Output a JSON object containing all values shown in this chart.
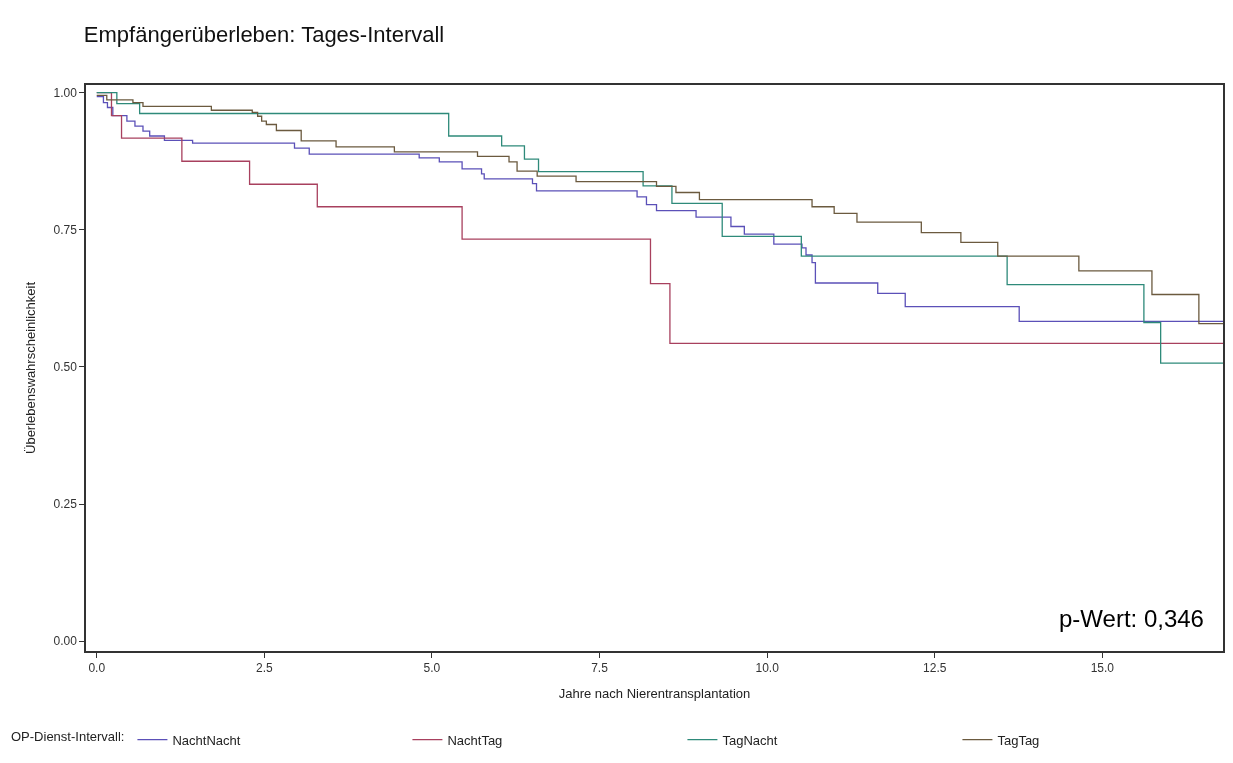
{
  "chart_data": {
    "type": "step",
    "title": "Empfängerüberleben: Tages-Intervall",
    "xlabel": "Jahre nach Nierentransplantation",
    "ylabel": "Überlebenswahrscheinlichkeit",
    "legend_title": "OP-Dienst-Intervall:",
    "legend": "bottom",
    "marker": "none",
    "line_style": "solid",
    "xlim": [
      -0.16,
      16.8
    ],
    "xticks": [
      {
        "value": 0,
        "label": "0.0"
      },
      {
        "value": 2.5,
        "label": "2.5"
      },
      {
        "value": 5,
        "label": "5.0"
      },
      {
        "value": 7.5,
        "label": "7.5"
      },
      {
        "value": 10,
        "label": "10.0"
      },
      {
        "value": 12.5,
        "label": "12.5"
      },
      {
        "value": 15,
        "label": "15.0"
      }
    ],
    "ylim": [
      -0.018,
      1.014
    ],
    "yticks": [
      {
        "value": 0,
        "label": "0.00"
      },
      {
        "value": 0.25,
        "label": "0.25"
      },
      {
        "value": 0.5,
        "label": "0.50"
      },
      {
        "value": 0.75,
        "label": "0.75"
      },
      {
        "value": 1,
        "label": "1.00"
      }
    ],
    "annotations": [
      "p-Wert: 0,346"
    ],
    "series": [
      {
        "name": "NachtNacht",
        "color": "#5b50b8",
        "x": [
          0,
          0.1,
          0.16,
          0.24,
          0.45,
          0.57,
          0.69,
          0.79,
          1.01,
          1.43,
          2.95,
          3.17,
          4.81,
          5.11,
          5.45,
          5.74,
          5.78,
          6.5,
          6.56,
          8.06,
          8.2,
          8.35,
          8.94,
          9.46,
          9.66,
          10.1,
          10.52,
          10.58,
          10.67,
          10.72,
          11.65,
          12.06,
          13.76,
          16.8
        ],
        "values": [
          0.993,
          0.982,
          0.973,
          0.958,
          0.948,
          0.939,
          0.93,
          0.921,
          0.913,
          0.908,
          0.899,
          0.888,
          0.881,
          0.874,
          0.861,
          0.852,
          0.843,
          0.834,
          0.821,
          0.81,
          0.796,
          0.785,
          0.773,
          0.756,
          0.742,
          0.724,
          0.717,
          0.704,
          0.69,
          0.653,
          0.634,
          0.61,
          0.583,
          0.583
        ]
      },
      {
        "name": "NachtTag",
        "color": "#a8405e",
        "x": [
          0,
          0.22,
          0.37,
          1.27,
          2.28,
          3.29,
          5.45,
          8.26,
          8.55,
          16.8
        ],
        "values": [
          1.0,
          0.958,
          0.917,
          0.875,
          0.833,
          0.792,
          0.733,
          0.652,
          0.543,
          0.543
        ]
      },
      {
        "name": "TagNacht",
        "color": "#2e8a7a",
        "x": [
          0,
          0.3,
          0.64,
          5.25,
          6.04,
          6.38,
          6.59,
          8.15,
          8.58,
          9.33,
          10.51,
          13.58,
          15.62,
          15.87,
          16.8
        ],
        "values": [
          1.0,
          0.98,
          0.962,
          0.921,
          0.903,
          0.879,
          0.856,
          0.83,
          0.798,
          0.738,
          0.702,
          0.65,
          0.581,
          0.507,
          0.507
        ]
      },
      {
        "name": "TagTag",
        "color": "#6b5a3f",
        "x": [
          0,
          0.15,
          0.54,
          0.69,
          1.71,
          2.32,
          2.4,
          2.46,
          2.53,
          2.68,
          3.05,
          3.57,
          4.44,
          5.68,
          6.15,
          6.27,
          6.57,
          7.15,
          8.35,
          8.64,
          8.99,
          10.67,
          11.0,
          11.34,
          12.3,
          12.89,
          13.44,
          14.65,
          15.74,
          16.44,
          16.8
        ],
        "values": [
          0.995,
          0.987,
          0.982,
          0.975,
          0.968,
          0.964,
          0.957,
          0.948,
          0.942,
          0.931,
          0.912,
          0.901,
          0.892,
          0.884,
          0.874,
          0.857,
          0.848,
          0.838,
          0.829,
          0.818,
          0.805,
          0.792,
          0.78,
          0.764,
          0.745,
          0.727,
          0.702,
          0.675,
          0.632,
          0.579,
          0.579
        ]
      }
    ]
  }
}
